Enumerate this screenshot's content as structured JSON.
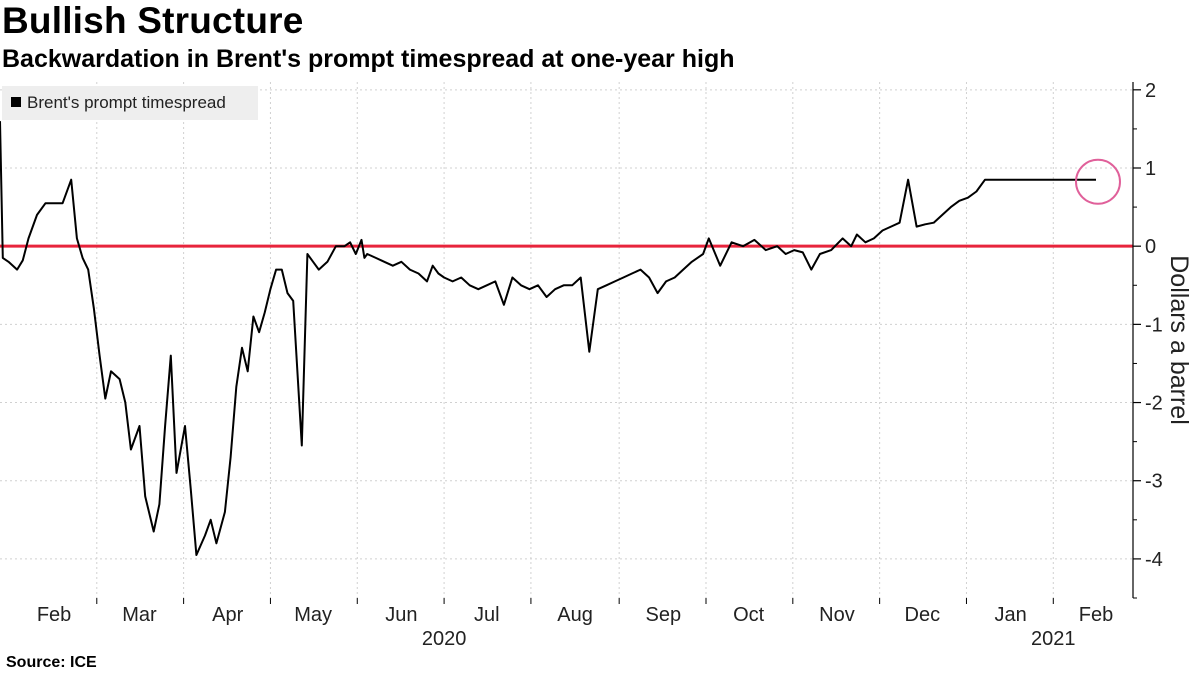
{
  "title": "Bullish Structure",
  "subtitle": "Backwardation in Brent's prompt timespread at one-year high",
  "source": "Source: ICE",
  "chart_data": {
    "type": "line",
    "ylabel": "Dollars a barrel",
    "ylim": [
      -4.5,
      2.1
    ],
    "yticks": [
      2,
      1,
      0,
      -1,
      -2,
      -3,
      -4
    ],
    "xlim": [
      "2020-01-27",
      "2021-02-28"
    ],
    "month_ticks": [
      {
        "label": "Feb",
        "date": "2020-02-15"
      },
      {
        "label": "Mar",
        "date": "2020-03-16"
      },
      {
        "label": "Apr",
        "date": "2020-04-16"
      },
      {
        "label": "May",
        "date": "2020-05-16"
      },
      {
        "label": "Jun",
        "date": "2020-06-16"
      },
      {
        "label": "Jul",
        "date": "2020-07-16"
      },
      {
        "label": "Aug",
        "date": "2020-08-16"
      },
      {
        "label": "Sep",
        "date": "2020-09-16"
      },
      {
        "label": "Oct",
        "date": "2020-10-16"
      },
      {
        "label": "Nov",
        "date": "2020-11-16"
      },
      {
        "label": "Dec",
        "date": "2020-12-16"
      },
      {
        "label": "Jan",
        "date": "2021-01-16"
      },
      {
        "label": "Feb",
        "date": "2021-02-15"
      }
    ],
    "year_labels": [
      {
        "label": "2020",
        "date": "2020-07-01"
      },
      {
        "label": "2021",
        "date": "2021-01-31"
      }
    ],
    "grid": true,
    "legend_position": "top-left",
    "reference_line": {
      "y": 0,
      "color": "#e8243c"
    },
    "highlight_color": "#e0609a",
    "series": [
      {
        "name": "Brent's prompt timespread",
        "color": "#000000",
        "x": [
          "2020-01-27",
          "2020-01-28",
          "2020-01-30",
          "2020-02-02",
          "2020-02-04",
          "2020-02-06",
          "2020-02-09",
          "2020-02-12",
          "2020-02-15",
          "2020-02-18",
          "2020-02-21",
          "2020-02-23",
          "2020-02-25",
          "2020-02-27",
          "2020-02-29",
          "2020-03-02",
          "2020-03-04",
          "2020-03-06",
          "2020-03-09",
          "2020-03-11",
          "2020-03-13",
          "2020-03-16",
          "2020-03-18",
          "2020-03-21",
          "2020-03-23",
          "2020-03-25",
          "2020-03-27",
          "2020-03-29",
          "2020-04-01",
          "2020-04-03",
          "2020-04-05",
          "2020-04-08",
          "2020-04-10",
          "2020-04-12",
          "2020-04-15",
          "2020-04-17",
          "2020-04-19",
          "2020-04-21",
          "2020-04-23",
          "2020-04-25",
          "2020-04-27",
          "2020-04-29",
          "2020-05-01",
          "2020-05-03",
          "2020-05-05",
          "2020-05-07",
          "2020-05-09",
          "2020-05-12",
          "2020-05-14",
          "2020-05-16",
          "2020-05-18",
          "2020-05-21",
          "2020-05-24",
          "2020-05-27",
          "2020-05-29",
          "2020-05-31",
          "2020-06-02",
          "2020-06-03",
          "2020-06-04",
          "2020-06-07",
          "2020-06-10",
          "2020-06-13",
          "2020-06-16",
          "2020-06-19",
          "2020-06-22",
          "2020-06-25",
          "2020-06-27",
          "2020-06-29",
          "2020-07-01",
          "2020-07-04",
          "2020-07-07",
          "2020-07-10",
          "2020-07-13",
          "2020-07-16",
          "2020-07-19",
          "2020-07-22",
          "2020-07-25",
          "2020-07-28",
          "2020-07-31",
          "2020-08-03",
          "2020-08-06",
          "2020-08-09",
          "2020-08-12",
          "2020-08-15",
          "2020-08-18",
          "2020-08-21",
          "2020-08-24",
          "2020-08-27",
          "2020-08-30",
          "2020-09-02",
          "2020-09-05",
          "2020-09-08",
          "2020-09-11",
          "2020-09-14",
          "2020-09-17",
          "2020-09-20",
          "2020-09-23",
          "2020-09-26",
          "2020-09-28",
          "2020-09-30",
          "2020-10-02",
          "2020-10-06",
          "2020-10-10",
          "2020-10-14",
          "2020-10-18",
          "2020-10-22",
          "2020-10-26",
          "2020-10-29",
          "2020-11-01",
          "2020-11-04",
          "2020-11-07",
          "2020-11-10",
          "2020-11-14",
          "2020-11-18",
          "2020-11-21",
          "2020-11-23",
          "2020-11-26",
          "2020-11-29",
          "2020-12-02",
          "2020-12-05",
          "2020-12-08",
          "2020-12-11",
          "2020-12-14",
          "2020-12-17",
          "2020-12-20",
          "2020-12-23",
          "2020-12-26",
          "2020-12-29",
          "2021-01-01",
          "2021-01-04",
          "2021-01-07",
          "2021-01-10",
          "2021-01-13",
          "2021-01-16",
          "2021-01-19",
          "2021-01-22",
          "2021-01-25",
          "2021-01-27",
          "2021-01-29",
          "2021-01-31",
          "2021-02-02",
          "2021-02-05",
          "2021-02-08",
          "2021-02-11",
          "2021-02-13",
          "2021-02-15"
        ],
        "y": [
          1.6,
          -0.15,
          -0.2,
          -0.3,
          -0.18,
          0.1,
          0.4,
          0.55,
          0.55,
          0.55,
          0.85,
          0.1,
          -0.15,
          -0.3,
          -0.8,
          -1.4,
          -1.95,
          -1.6,
          -1.7,
          -2.0,
          -2.6,
          -2.3,
          -3.2,
          -3.65,
          -3.3,
          -2.3,
          -1.4,
          -2.9,
          -2.3,
          -3.1,
          -3.95,
          -3.7,
          -3.5,
          -3.8,
          -3.4,
          -2.7,
          -1.8,
          -1.3,
          -1.6,
          -0.9,
          -1.1,
          -0.85,
          -0.55,
          -0.3,
          -0.3,
          -0.6,
          -0.7,
          -2.55,
          -0.1,
          -0.2,
          -0.3,
          -0.2,
          0.0,
          0.0,
          0.05,
          -0.1,
          0.08,
          -0.15,
          -0.1,
          -0.15,
          -0.2,
          -0.25,
          -0.2,
          -0.3,
          -0.35,
          -0.45,
          -0.25,
          -0.35,
          -0.4,
          -0.45,
          -0.4,
          -0.5,
          -0.55,
          -0.5,
          -0.45,
          -0.75,
          -0.4,
          -0.5,
          -0.55,
          -0.5,
          -0.65,
          -0.55,
          -0.5,
          -0.5,
          -0.4,
          -1.35,
          -0.55,
          -0.5,
          -0.45,
          -0.4,
          -0.35,
          -0.3,
          -0.4,
          -0.6,
          -0.45,
          -0.4,
          -0.3,
          -0.2,
          -0.15,
          -0.1,
          0.1,
          -0.25,
          0.05,
          0.0,
          0.08,
          -0.05,
          0.0,
          -0.1,
          -0.05,
          -0.08,
          -0.3,
          -0.1,
          -0.05,
          0.1,
          0.0,
          0.15,
          0.05,
          0.1,
          0.2,
          0.25,
          0.3,
          0.85,
          0.25,
          0.28,
          0.3,
          0.4,
          0.5,
          0.58,
          0.62,
          0.7,
          0.85,
          0.85,
          0.85,
          0.85,
          0.85,
          0.85,
          0.85,
          0.85,
          0.85,
          0.85,
          0.85,
          0.85,
          0.85,
          0.85,
          0.85,
          0.85
        ]
      }
    ]
  }
}
